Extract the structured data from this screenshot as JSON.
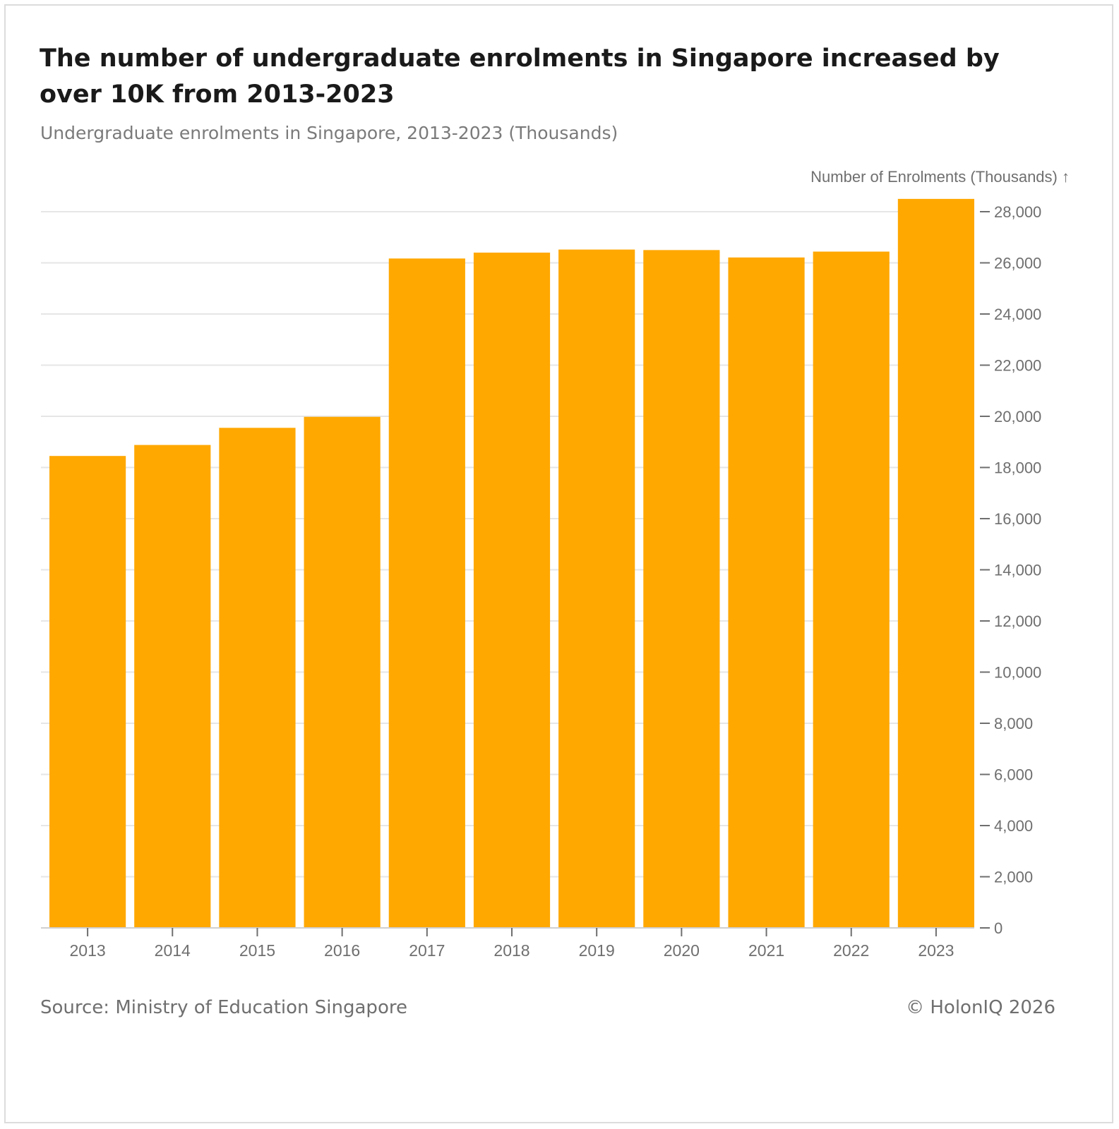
{
  "chart_data": {
    "type": "bar",
    "title": "The number of undergraduate enrolments in Singapore increased by over 10K from 2013-2023",
    "subtitle": "Undergraduate enrolments in Singapore, 2013-2023 (Thousands)",
    "ylabel": "Number of Enrolments (Thousands) ↑",
    "xlabel": "",
    "categories": [
      "2013",
      "2014",
      "2015",
      "2016",
      "2017",
      "2018",
      "2019",
      "2020",
      "2021",
      "2022",
      "2023"
    ],
    "values": [
      18450,
      18880,
      19550,
      19980,
      26170,
      26400,
      26520,
      26500,
      26210,
      26440,
      28500
    ],
    "ylim": [
      0,
      28000
    ],
    "yticks": [
      0,
      2000,
      4000,
      6000,
      8000,
      10000,
      12000,
      14000,
      16000,
      18000,
      20000,
      22000,
      24000,
      26000,
      28000
    ],
    "ytick_labels": [
      "0",
      "2,000",
      "4,000",
      "6,000",
      "8,000",
      "10,000",
      "12,000",
      "14,000",
      "16,000",
      "18,000",
      "20,000",
      "22,000",
      "24,000",
      "26,000",
      "28,000"
    ],
    "grid": true,
    "y_axis_side": "right",
    "bar_color": "#FFA800"
  },
  "footer": {
    "source": "Source: Ministry of Education Singapore",
    "copyright": "© HolonIQ 2026"
  }
}
